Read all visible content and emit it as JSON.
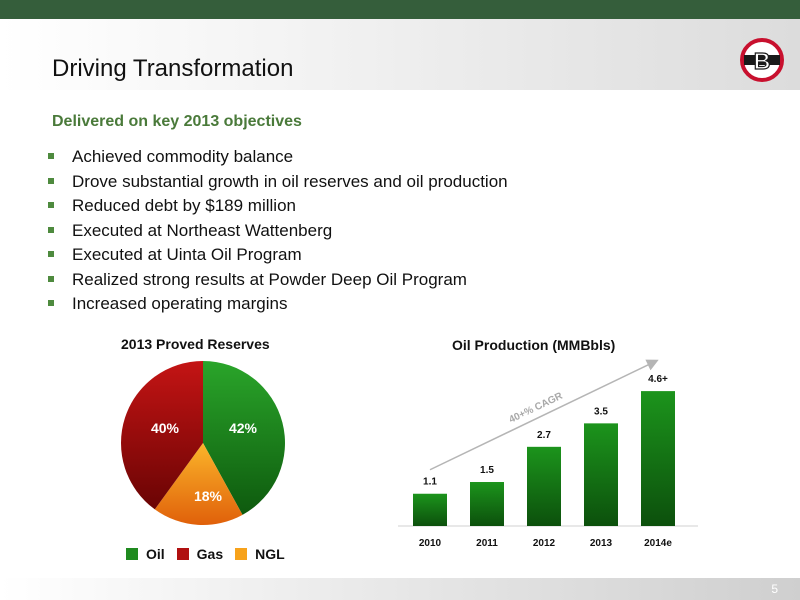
{
  "slide": {
    "title": "Driving Transformation",
    "subtitle": "Delivered on key 2013 objectives",
    "page_number": "5",
    "logo_letter": "B"
  },
  "bullets": [
    "Achieved commodity balance",
    "Drove substantial growth in oil reserves and oil production",
    "Reduced debt by $189 million",
    "Executed at Northeast Wattenberg",
    "Executed at Uinta Oil Program",
    "Realized strong results at Powder Deep Oil Program",
    "Increased operating margins"
  ],
  "colors": {
    "oil": "#1f8a1f",
    "gas": "#b01010",
    "ngl": "#f7a21b",
    "accent_green": "#355e3b"
  },
  "chart_data": [
    {
      "type": "pie",
      "title": "2013 Proved Reserves",
      "slices": [
        {
          "name": "Oil",
          "value": 42,
          "label": "42%"
        },
        {
          "name": "NGL",
          "value": 18,
          "label": "18%"
        },
        {
          "name": "Gas",
          "value": 40,
          "label": "40%"
        }
      ],
      "legend": [
        "Oil",
        "Gas",
        "NGL"
      ],
      "legend_position": "bottom"
    },
    {
      "type": "bar",
      "title": "Oil Production (MMBbls)",
      "categories": [
        "2010",
        "2011",
        "2012",
        "2013",
        "2014e"
      ],
      "values": [
        1.1,
        1.5,
        2.7,
        3.5,
        4.6
      ],
      "value_labels": [
        "1.1",
        "1.5",
        "2.7",
        "3.5",
        "4.6+"
      ],
      "annotation": "40+% CAGR",
      "ylim": [
        0,
        4.8
      ],
      "grid": false
    }
  ]
}
